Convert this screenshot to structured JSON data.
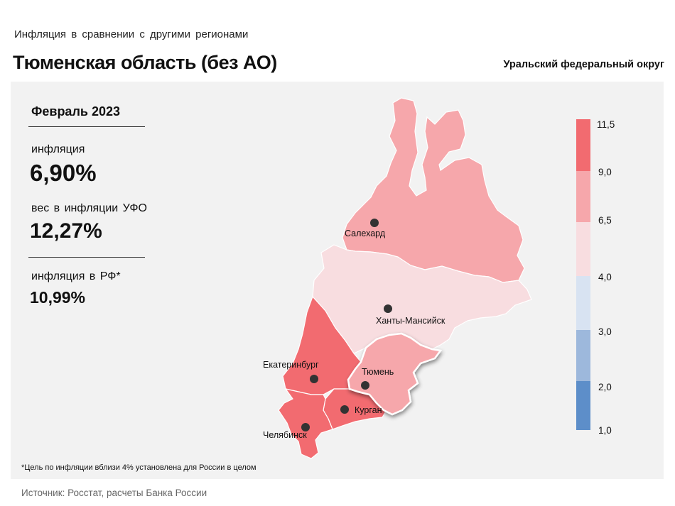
{
  "header": {
    "subtitle": "Инфляция в сравнении с другими регионами",
    "title": "Тюменская область (без АО)",
    "district": "Уральский федеральный округ"
  },
  "stats": {
    "period": "Февраль 2023",
    "inflation_label": "инфляция",
    "inflation_value": "6,90%",
    "weight_label": "вес в инфляции УФО",
    "weight_value": "12,27%",
    "rf_label": "инфляция в РФ*",
    "rf_value": "10,99%"
  },
  "map": {
    "cities": [
      "Салехард",
      "Ханты-Мансийск",
      "Екатеринбург",
      "Тюмень",
      "Курган",
      "Челябинск"
    ],
    "region_colors": {
      "yamal": "#f6a7ab",
      "khmao": "#f8dde0",
      "sverdlovsk": "#f26b70",
      "tyumen": "#f6a7ab",
      "kurgan": "#f26b70",
      "chelyabinsk": "#f26b70"
    },
    "highlighted_region": "tyumen"
  },
  "legend": {
    "ticks": [
      "11,5",
      "9,0",
      "6,5",
      "4,0",
      "3,0",
      "2,0",
      "1,0"
    ],
    "colors": [
      "#f26b70",
      "#f6a7ab",
      "#f8dde0",
      "#d8e3f2",
      "#9db8dc",
      "#5d8ec9"
    ]
  },
  "footnote": "*Цель по инфляции вблизи 4% установлена для России в целом",
  "source": "Источник: Росстат, расчеты Банка России"
}
